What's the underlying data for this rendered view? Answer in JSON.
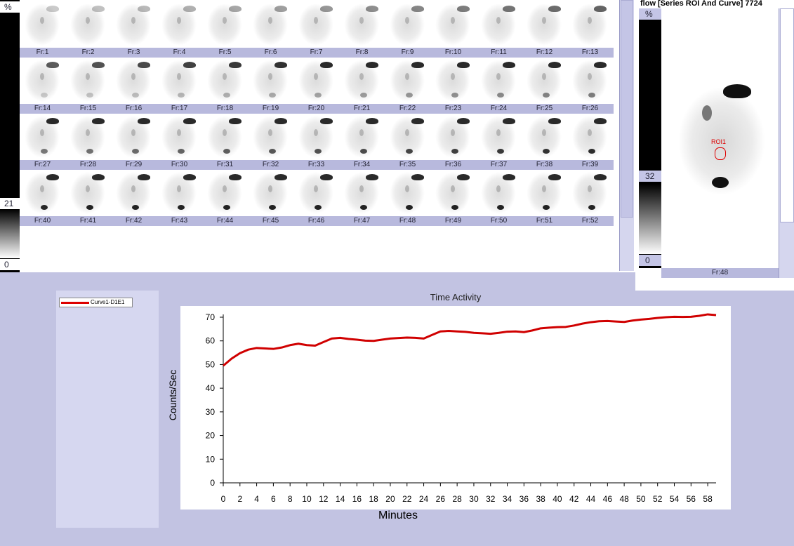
{
  "frames_panel": {
    "scale_top": "%",
    "scale_mid": "21",
    "scale_bottom": "0",
    "frames": [
      "Fr:1",
      "Fr:2",
      "Fr:3",
      "Fr:4",
      "Fr:5",
      "Fr:6",
      "Fr:7",
      "Fr:8",
      "Fr:9",
      "Fr:10",
      "Fr:11",
      "Fr:12",
      "Fr:13",
      "Fr:14",
      "Fr:15",
      "Fr:16",
      "Fr:17",
      "Fr:18",
      "Fr:19",
      "Fr:20",
      "Fr:21",
      "Fr:22",
      "Fr:23",
      "Fr:24",
      "Fr:25",
      "Fr:26",
      "Fr:27",
      "Fr:28",
      "Fr:29",
      "Fr:30",
      "Fr:31",
      "Fr:32",
      "Fr:33",
      "Fr:34",
      "Fr:35",
      "Fr:36",
      "Fr:37",
      "Fr:38",
      "Fr:39",
      "Fr:40",
      "Fr:41",
      "Fr:42",
      "Fr:43",
      "Fr:44",
      "Fr:45",
      "Fr:46",
      "Fr:47",
      "Fr:48",
      "Fr:49",
      "Fr:50",
      "Fr:51",
      "Fr:52"
    ]
  },
  "roi_panel": {
    "title": "flow [Series ROI And Curve] 7724",
    "scale_top": "%",
    "scale_mid": "32",
    "scale_bottom": "0",
    "roi_label": "ROI1",
    "frame_label": "Fr:48"
  },
  "legend": {
    "item": "Curve1-D1E1",
    "color": "#d00000"
  },
  "chart_data": {
    "type": "line",
    "title": "Time Activity",
    "xlabel": "Minutes",
    "ylabel": "Counts/Sec",
    "xlim": [
      0,
      59
    ],
    "ylim": [
      0,
      70
    ],
    "xticks": [
      0,
      2,
      4,
      6,
      8,
      10,
      12,
      14,
      16,
      18,
      20,
      22,
      24,
      26,
      28,
      30,
      32,
      34,
      36,
      38,
      40,
      42,
      44,
      46,
      48,
      50,
      52,
      54,
      56,
      58
    ],
    "yticks": [
      0,
      10,
      20,
      30,
      40,
      50,
      60,
      70
    ],
    "grid": false,
    "legend_position": "top-left-outside",
    "series": [
      {
        "name": "Curve1-D1E1",
        "color": "#d00000",
        "x": [
          0,
          1,
          2,
          3,
          4,
          5,
          6,
          7,
          8,
          9,
          10,
          11,
          12,
          13,
          14,
          15,
          16,
          17,
          18,
          19,
          20,
          21,
          22,
          23,
          24,
          25,
          26,
          27,
          28,
          29,
          30,
          31,
          32,
          33,
          34,
          35,
          36,
          37,
          38,
          39,
          40,
          41,
          42,
          43,
          44,
          45,
          46,
          47,
          48,
          49,
          50,
          51,
          52,
          53,
          54,
          55,
          56,
          57,
          58,
          59
        ],
        "y": [
          49.5,
          52.5,
          54.8,
          56.3,
          57,
          56.8,
          56.6,
          57.2,
          58.2,
          58.8,
          58.2,
          58,
          59.5,
          61,
          61.3,
          60.8,
          60.5,
          60.1,
          60,
          60.5,
          61,
          61.2,
          61.4,
          61.3,
          61,
          62.5,
          64,
          64.2,
          64,
          63.8,
          63.4,
          63.2,
          63,
          63.4,
          63.9,
          64,
          63.7,
          64.4,
          65.3,
          65.6,
          65.8,
          65.9,
          66.5,
          67.3,
          67.9,
          68.3,
          68.4,
          68.2,
          68,
          68.6,
          69,
          69.3,
          69.7,
          70,
          70.2,
          70.1,
          70.2,
          70.6,
          71.2,
          70.9
        ]
      }
    ]
  }
}
